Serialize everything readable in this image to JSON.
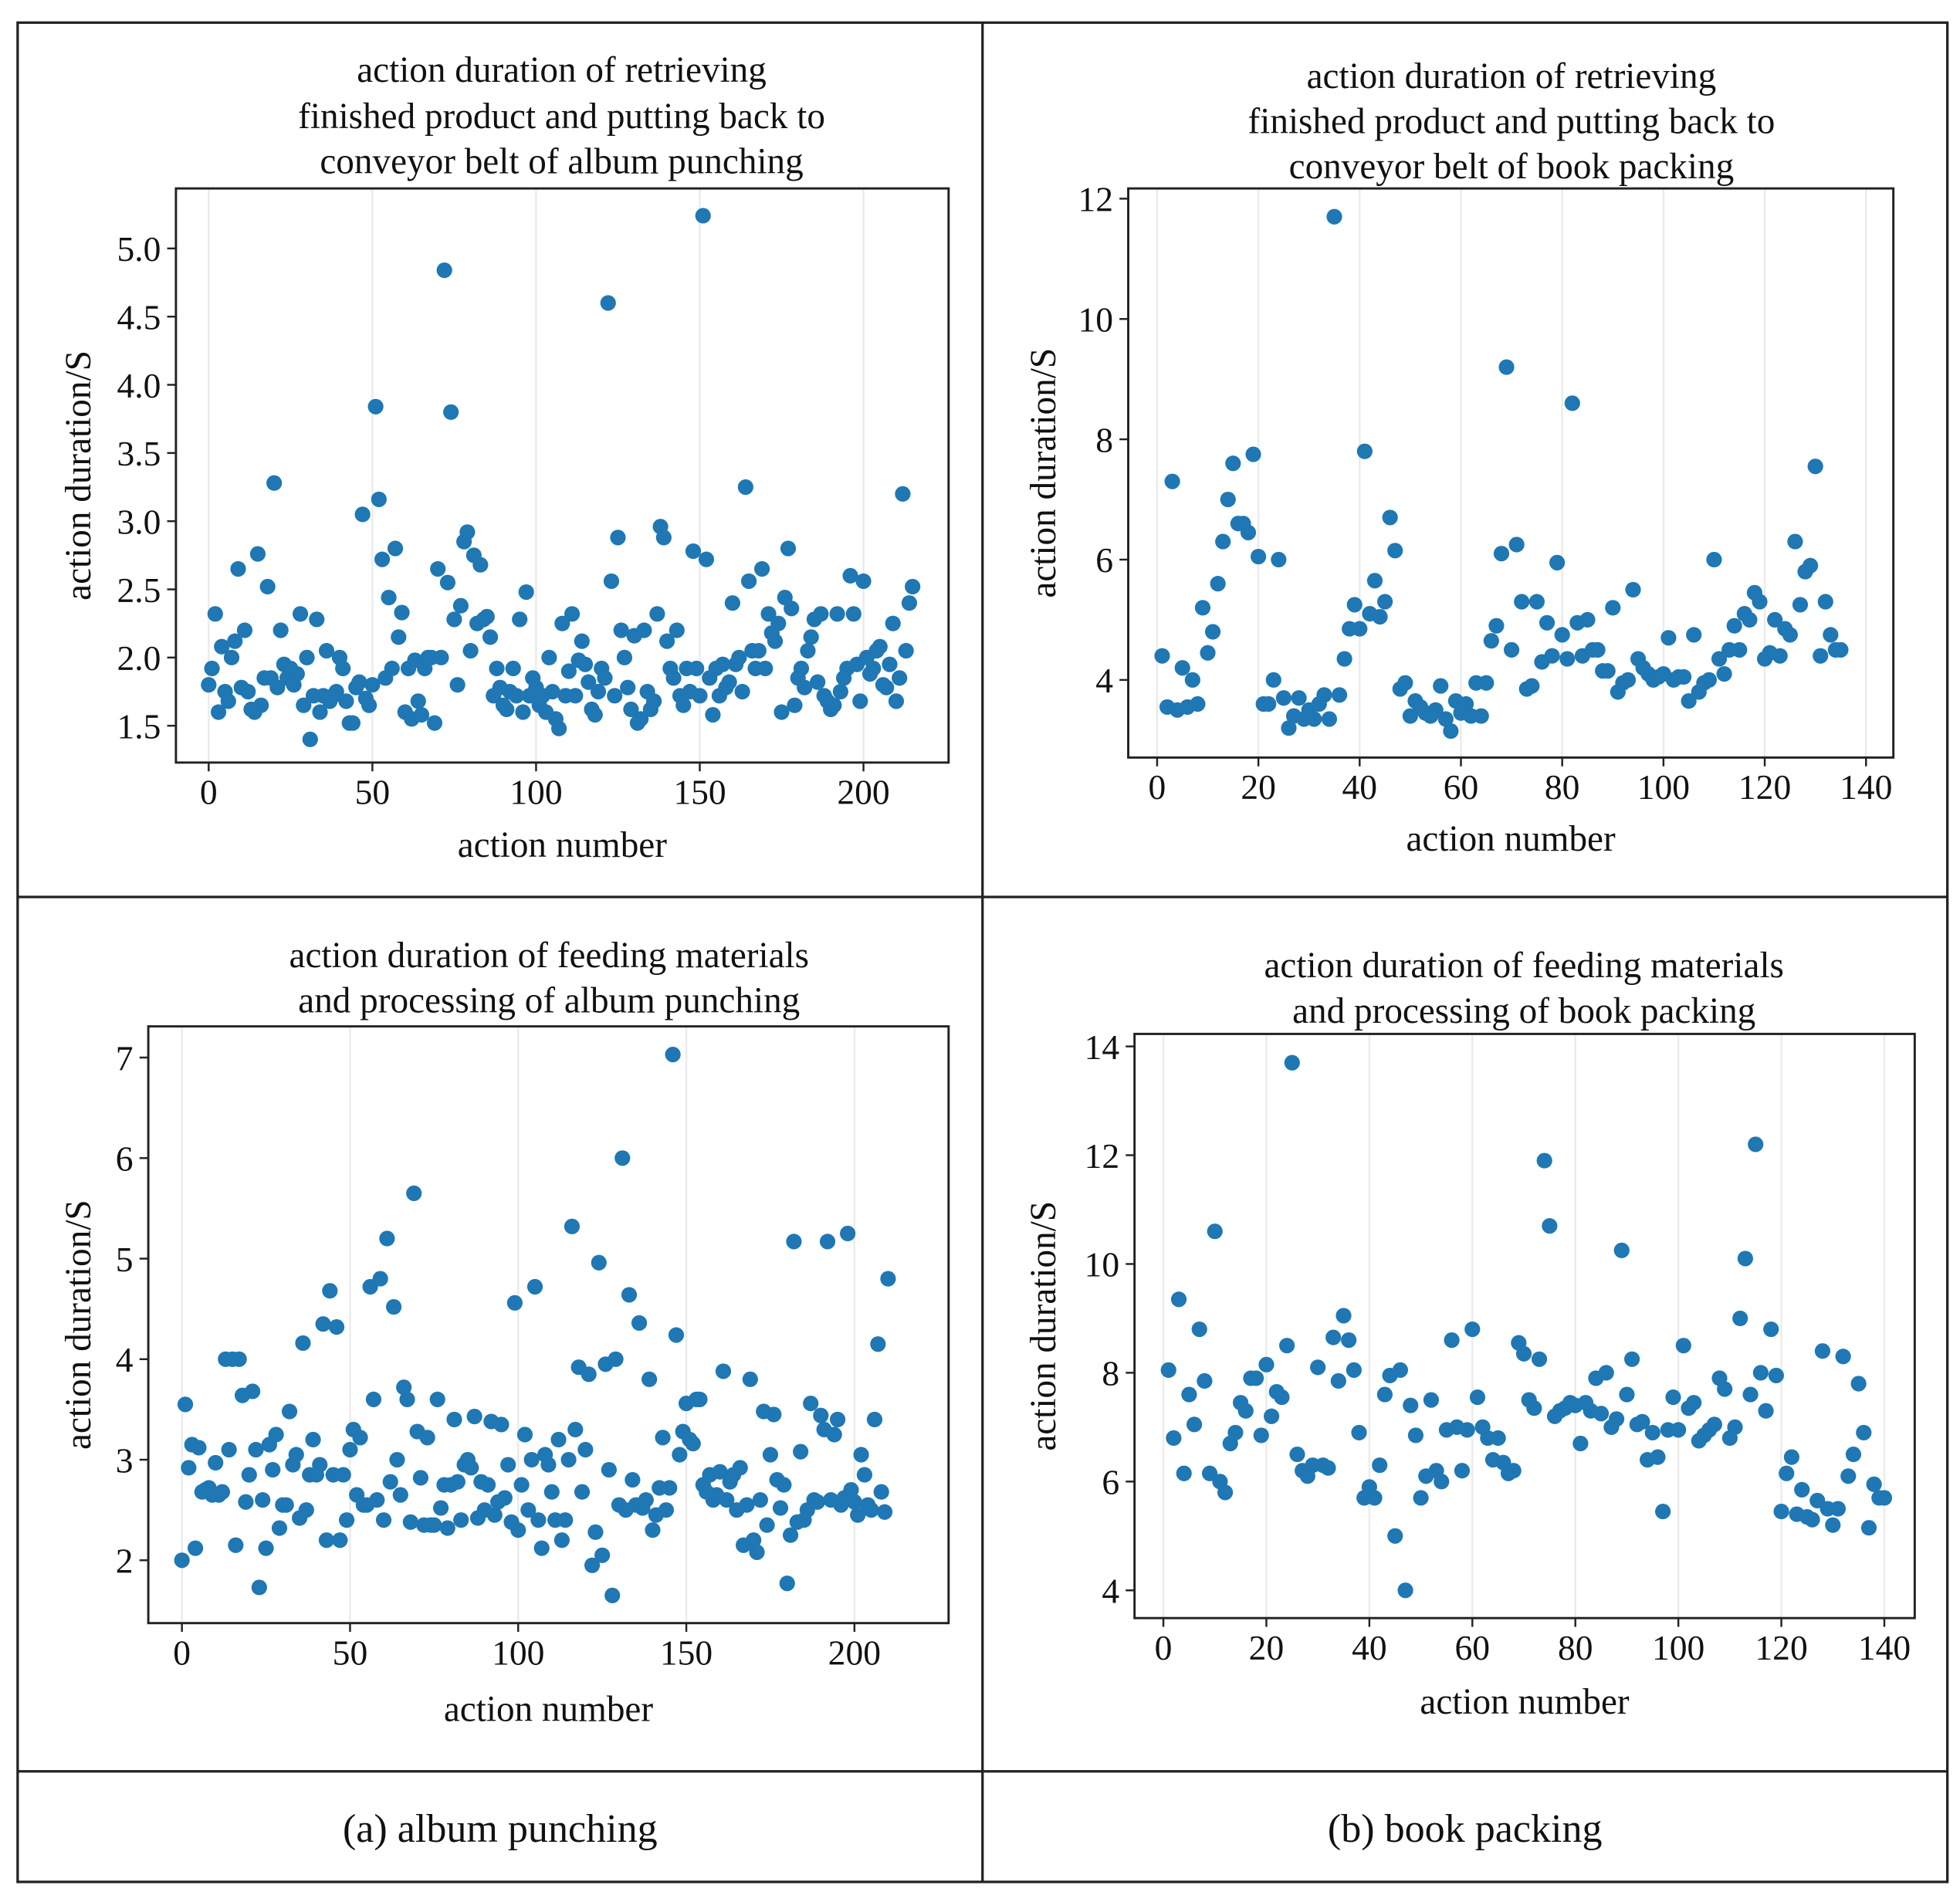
{
  "captions": {
    "a": "(a) album punching",
    "b": "(b) book packing"
  },
  "chart_data": [
    {
      "type": "scatter",
      "title": [
        "action duration of retrieving",
        "finished product and putting back to",
        "conveyor belt of album punching"
      ],
      "xlabel": "action number",
      "ylabel": "action duration/S",
      "xlim": [
        -10,
        226
      ],
      "ylim": [
        1.23,
        5.44
      ],
      "xticks": [
        0,
        50,
        100,
        150,
        200
      ],
      "yticks": [
        1.5,
        2.0,
        2.5,
        3.0,
        3.5,
        4.0,
        4.5,
        5.0
      ],
      "ytick_labels": [
        "1.5",
        "2.0",
        "2.5",
        "3.0",
        "3.5",
        "4.0",
        "4.5",
        "5.0"
      ],
      "grid": "x",
      "color": "#1f77b4",
      "x_start": 0,
      "y": [
        1.8,
        1.92,
        2.32,
        1.6,
        2.08,
        1.75,
        1.68,
        2.0,
        2.12,
        2.65,
        1.78,
        2.2,
        1.75,
        1.62,
        1.6,
        2.76,
        1.65,
        1.85,
        2.52,
        1.85,
        3.28,
        1.78,
        2.2,
        1.95,
        1.85,
        1.92,
        1.8,
        1.88,
        2.32,
        1.65,
        2.0,
        1.4,
        1.72,
        2.28,
        1.6,
        1.72,
        2.05,
        1.68,
        1.72,
        1.75,
        2.0,
        1.92,
        1.68,
        1.52,
        1.52,
        1.78,
        1.82,
        3.05,
        1.7,
        1.65,
        1.8,
        3.84,
        3.16,
        2.72,
        1.85,
        2.44,
        1.92,
        2.8,
        2.15,
        2.33,
        1.6,
        1.92,
        1.55,
        1.98,
        1.68,
        1.58,
        1.92,
        2.0,
        2.0,
        1.52,
        2.65,
        2.0,
        4.84,
        2.55,
        3.8,
        2.28,
        1.8,
        2.38,
        2.85,
        2.92,
        2.05,
        2.75,
        2.25,
        2.68,
        2.28,
        2.3,
        2.15,
        1.72,
        1.92,
        1.78,
        1.65,
        1.62,
        1.75,
        1.92,
        1.72,
        2.28,
        1.6,
        2.48,
        1.72,
        1.85,
        1.78,
        1.65,
        1.72,
        1.6,
        2.0,
        1.75,
        1.55,
        1.48,
        2.25,
        1.72,
        1.9,
        2.32,
        1.72,
        1.98,
        2.12,
        1.95,
        1.82,
        1.62,
        1.58,
        1.75,
        1.92,
        1.85,
        4.6,
        2.56,
        1.72,
        2.88,
        2.2,
        2.0,
        1.78,
        1.62,
        2.16,
        1.52,
        1.55,
        2.2,
        1.75,
        1.62,
        1.68,
        2.32,
        2.96,
        2.88,
        2.12,
        1.92,
        1.85,
        2.2,
        1.72,
        1.65,
        1.92,
        1.75,
        2.78,
        1.92,
        1.72,
        5.24,
        2.72,
        1.85,
        1.58,
        1.92,
        1.72,
        1.95,
        1.78,
        1.82,
        2.4,
        1.95,
        2.0,
        1.75,
        3.25,
        2.56,
        2.05,
        1.92,
        2.05,
        2.65,
        1.92,
        2.32,
        2.18,
        2.12,
        2.25,
        1.6,
        2.44,
        2.8,
        2.36,
        1.65,
        1.85,
        1.92,
        1.78,
        2.05,
        2.15,
        2.28,
        1.82,
        2.32,
        1.72,
        1.68,
        1.62,
        1.65,
        2.32,
        1.75,
        1.85,
        1.92,
        2.6,
        2.32,
        1.95,
        1.68,
        2.56,
        2.0,
        1.88,
        1.92,
        2.05,
        2.08,
        1.8,
        1.78,
        1.95,
        2.25,
        1.68,
        1.85,
        3.2,
        2.05,
        2.4,
        2.52
      ]
    },
    {
      "type": "scatter",
      "title": [
        "action duration of retrieving",
        "finished product and putting back to",
        "conveyor belt of book packing"
      ],
      "xlabel": "action number",
      "ylabel": "action duration/S",
      "xlim": [
        -5.7,
        145.4
      ],
      "ylim": [
        2.71,
        12.17
      ],
      "xticks": [
        0,
        20,
        40,
        60,
        80,
        100,
        120,
        140
      ],
      "yticks": [
        4,
        6,
        8,
        10,
        12
      ],
      "ytick_labels": [
        "4",
        "6",
        "8",
        "10",
        "12"
      ],
      "grid": "x",
      "color": "#1f77b4",
      "x_start": 1,
      "y": [
        4.4,
        3.55,
        7.3,
        3.5,
        4.2,
        3.55,
        4.0,
        3.6,
        5.2,
        4.45,
        4.8,
        5.6,
        6.3,
        7.0,
        7.6,
        6.6,
        6.6,
        6.45,
        7.75,
        6.05,
        3.6,
        3.6,
        4.0,
        6.0,
        3.7,
        3.2,
        3.4,
        3.7,
        3.35,
        3.5,
        3.35,
        3.6,
        3.75,
        3.35,
        11.7,
        3.75,
        4.35,
        4.85,
        5.25,
        4.85,
        7.8,
        5.1,
        5.65,
        5.05,
        5.3,
        6.7,
        6.15,
        3.85,
        3.95,
        3.4,
        3.65,
        3.55,
        3.45,
        3.4,
        3.5,
        3.9,
        3.35,
        3.15,
        3.65,
        3.45,
        3.6,
        3.4,
        3.95,
        3.4,
        3.95,
        4.65,
        4.9,
        6.1,
        9.2,
        4.5,
        6.25,
        5.3,
        3.85,
        3.9,
        5.3,
        4.3,
        4.95,
        4.4,
        5.95,
        4.75,
        4.35,
        8.6,
        4.95,
        4.4,
        5.0,
        4.5,
        4.5,
        4.15,
        4.15,
        5.2,
        3.8,
        3.95,
        4.0,
        5.5,
        4.35,
        4.2,
        4.1,
        4.0,
        4.05,
        4.1,
        4.7,
        4.0,
        4.05,
        4.05,
        3.65,
        4.75,
        3.8,
        3.95,
        4.0,
        6.0,
        4.35,
        4.1,
        4.5,
        4.9,
        4.5,
        5.1,
        5.0,
        5.45,
        5.3,
        4.35,
        4.45,
        5.0,
        4.4,
        4.85,
        4.75,
        6.3,
        5.25,
        5.8,
        5.9,
        7.55,
        4.4,
        5.3,
        4.75,
        4.5,
        4.5
      ]
    },
    {
      "type": "scatter",
      "title": [
        "action duration of feeding materials",
        "and processing of album punching"
      ],
      "xlabel": "action number",
      "ylabel": "action duration/S",
      "xlim": [
        -10,
        228
      ],
      "ylim": [
        1.375,
        7.31
      ],
      "xticks": [
        0,
        50,
        100,
        150,
        200
      ],
      "yticks": [
        2,
        3,
        4,
        5,
        6,
        7
      ],
      "ytick_labels": [
        "2",
        "3",
        "4",
        "5",
        "6",
        "7"
      ],
      "grid": "x",
      "color": "#1f77b4",
      "x_start": 0,
      "y": [
        2.0,
        3.55,
        2.92,
        3.15,
        2.12,
        3.12,
        2.68,
        2.7,
        2.72,
        2.65,
        2.97,
        2.65,
        2.68,
        4.0,
        3.1,
        4.0,
        2.15,
        4.0,
        3.64,
        2.58,
        2.85,
        3.68,
        3.1,
        1.73,
        2.6,
        2.12,
        3.15,
        2.9,
        3.25,
        2.32,
        2.55,
        2.55,
        3.48,
        2.95,
        3.05,
        2.42,
        4.16,
        2.5,
        2.85,
        3.2,
        2.85,
        2.95,
        4.35,
        2.2,
        4.68,
        2.85,
        4.32,
        2.2,
        2.85,
        2.4,
        3.1,
        3.3,
        2.65,
        3.22,
        2.55,
        2.55,
        4.72,
        3.6,
        2.6,
        4.8,
        2.4,
        5.2,
        2.78,
        4.52,
        3.0,
        2.65,
        3.72,
        3.6,
        2.38,
        5.65,
        3.28,
        2.82,
        2.35,
        3.22,
        2.35,
        2.35,
        3.6,
        2.52,
        2.75,
        2.32,
        2.75,
        3.4,
        2.78,
        2.4,
        2.95,
        3.0,
        2.92,
        3.43,
        2.42,
        2.78,
        2.5,
        2.75,
        3.38,
        2.45,
        2.58,
        3.35,
        2.62,
        2.95,
        2.38,
        4.56,
        2.3,
        2.75,
        3.25,
        2.5,
        3.0,
        4.72,
        2.4,
        2.12,
        3.05,
        2.95,
        2.68,
        2.4,
        3.2,
        2.2,
        2.4,
        3.0,
        5.32,
        3.3,
        3.92,
        2.68,
        3.1,
        3.85,
        1.95,
        2.28,
        4.96,
        2.05,
        3.95,
        2.9,
        1.65,
        4.0,
        2.55,
        6.0,
        2.5,
        4.64,
        2.8,
        2.55,
        4.36,
        2.52,
        2.6,
        3.8,
        2.3,
        2.45,
        2.72,
        3.22,
        2.5,
        2.72,
        7.03,
        4.24,
        3.05,
        3.28,
        3.56,
        3.2,
        3.16,
        3.6,
        3.6,
        2.75,
        2.68,
        2.85,
        2.6,
        2.65,
        2.88,
        3.88,
        2.6,
        2.78,
        2.85,
        2.5,
        2.92,
        2.15,
        2.55,
        3.8,
        2.2,
        2.08,
        2.6,
        3.48,
        2.35,
        3.05,
        3.45,
        2.8,
        2.52,
        2.75,
        1.77,
        2.25,
        5.17,
        2.38,
        3.08,
        2.4,
        2.5,
        3.56,
        2.6,
        2.58,
        3.44,
        3.3,
        5.17,
        2.6,
        3.25,
        3.4,
        2.55,
        2.62,
        5.25,
        2.7,
        2.58,
        2.45,
        3.05,
        2.85,
        2.55,
        2.5,
        3.4,
        4.15,
        2.68,
        2.48,
        4.8
      ]
    },
    {
      "type": "scatter",
      "title": [
        "action duration of feeding materials",
        "and processing of book packing"
      ],
      "xlabel": "action number",
      "ylabel": "action duration/S",
      "xlim": [
        -5.6,
        145.9
      ],
      "ylim": [
        3.49,
        14.23
      ],
      "xticks": [
        0,
        20,
        40,
        60,
        80,
        100,
        120,
        140
      ],
      "yticks": [
        4,
        6,
        8,
        10,
        12,
        14
      ],
      "ytick_labels": [
        "4",
        "6",
        "8",
        "10",
        "12",
        "14"
      ],
      "grid": "x",
      "color": "#1f77b4",
      "x_start": 1,
      "y": [
        8.05,
        6.8,
        9.35,
        6.15,
        7.6,
        7.05,
        8.8,
        7.85,
        6.15,
        10.6,
        6.0,
        5.8,
        6.7,
        6.9,
        7.45,
        7.3,
        7.9,
        7.9,
        6.85,
        8.15,
        7.2,
        7.65,
        7.55,
        8.5,
        13.7,
        6.5,
        6.2,
        6.1,
        6.3,
        8.1,
        6.3,
        6.25,
        8.65,
        7.85,
        9.05,
        8.6,
        8.05,
        6.9,
        5.7,
        5.9,
        5.7,
        6.3,
        7.6,
        7.95,
        5.0,
        8.05,
        4.0,
        7.4,
        6.85,
        5.7,
        6.1,
        7.5,
        6.2,
        6.0,
        6.95,
        8.6,
        7.0,
        6.2,
        6.95,
        8.8,
        7.55,
        7.0,
        6.8,
        6.4,
        6.8,
        6.35,
        6.15,
        6.2,
        8.55,
        8.35,
        7.5,
        7.35,
        8.25,
        11.9,
        10.7,
        7.2,
        7.3,
        7.35,
        7.45,
        7.4,
        6.7,
        7.45,
        7.3,
        7.9,
        7.25,
        8.0,
        7.0,
        7.15,
        10.25,
        7.6,
        8.25,
        7.05,
        7.1,
        6.4,
        6.9,
        6.45,
        5.45,
        6.95,
        7.55,
        6.95,
        8.5,
        7.35,
        7.45,
        6.75,
        6.85,
        6.95,
        7.05,
        7.9,
        7.7,
        6.8,
        7.0,
        9.0,
        10.1,
        7.6,
        12.2,
        8.0,
        7.3,
        8.8,
        7.95,
        5.45,
        6.15,
        6.45,
        5.4,
        5.85,
        5.35,
        5.3,
        5.65,
        8.4,
        5.5,
        5.2,
        5.5,
        8.3,
        6.1,
        6.5,
        7.8,
        6.9,
        5.15,
        5.95,
        5.7,
        5.7
      ]
    }
  ]
}
